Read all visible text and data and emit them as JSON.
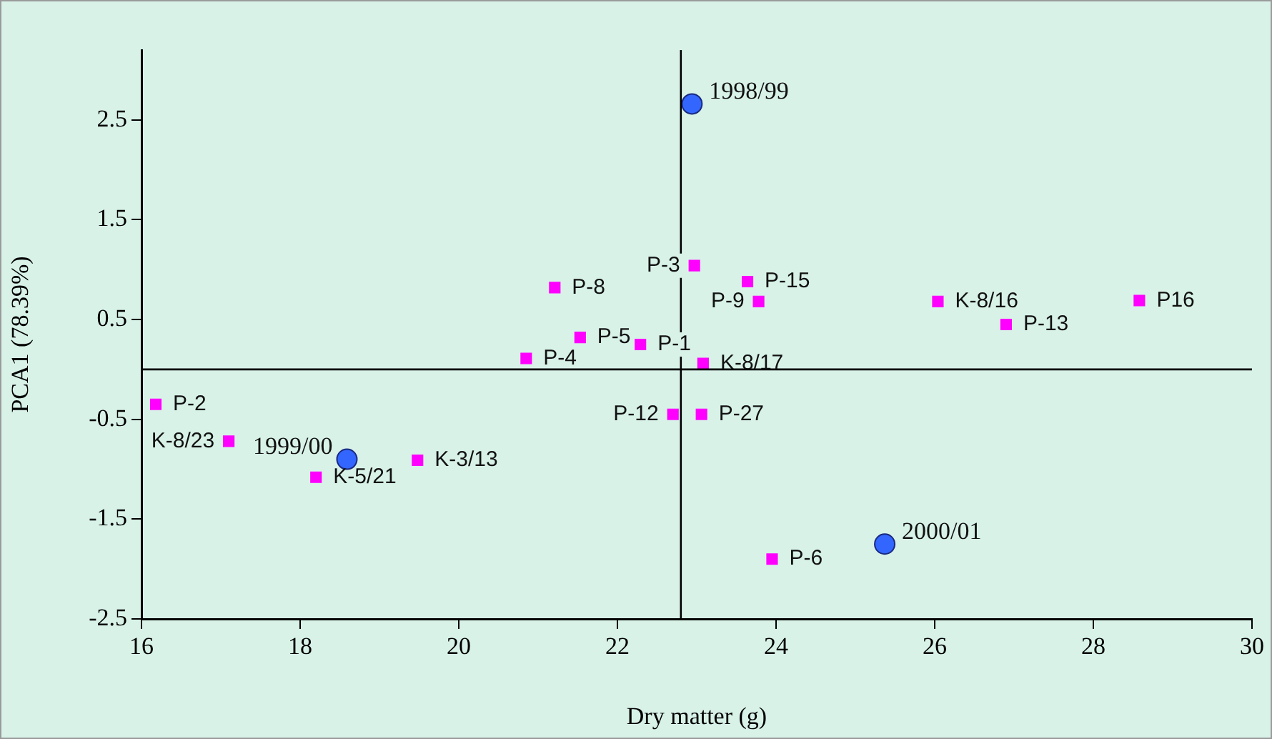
{
  "chart_data": {
    "type": "scatter",
    "xlabel": "Dry matter (g)",
    "ylabel": "PCA1 (78.39%)",
    "xlim": [
      16,
      30
    ],
    "xticks": [
      16,
      18,
      20,
      22,
      24,
      26,
      28,
      30
    ],
    "ylim": [
      -2.5,
      3.2
    ],
    "yticks": [
      -2.5,
      -1.5,
      -0.5,
      0.5,
      1.5,
      2.5
    ],
    "grid": false,
    "legend": false,
    "series": [
      {
        "color": "#3366ff",
        "marker": "circle",
        "x": [
          22.94,
          18.59,
          25.37
        ],
        "values": [
          2.66,
          -0.9,
          -1.75
        ]
      },
      {
        "color": "#ff00ff",
        "marker": "square",
        "x": [
          16.18,
          17.1,
          18.2,
          19.48,
          20.85,
          21.21,
          21.53,
          22.29,
          22.97,
          23.64,
          23.78,
          23.08,
          26.04,
          26.9,
          28.58,
          22.7,
          23.06,
          23.95
        ],
        "values": [
          -0.35,
          -0.72,
          -1.08,
          -0.91,
          0.11,
          0.82,
          0.32,
          0.25,
          1.04,
          0.88,
          0.68,
          0.06,
          0.68,
          0.45,
          0.69,
          -0.45,
          -0.45,
          -1.9
        ]
      }
    ],
    "ref_lines": [
      {
        "axis": "x",
        "value": 22.8,
        "color": "#000000"
      },
      {
        "axis": "y",
        "value": 0,
        "color": "#000000"
      }
    ],
    "annotations": [
      {
        "text": "1998/99",
        "x": 22.94,
        "y": 2.66
      },
      {
        "text": "1999/00",
        "x": 18.59,
        "y": -0.9
      },
      {
        "text": "2000/01",
        "x": 25.37,
        "y": -1.75
      },
      {
        "text": "P-2",
        "x": 16.18,
        "y": -0.35
      },
      {
        "text": "K-8/23",
        "x": 17.1,
        "y": -0.72
      },
      {
        "text": "K-5/21",
        "x": 18.2,
        "y": -1.08
      },
      {
        "text": "K-3/13",
        "x": 19.48,
        "y": -0.91
      },
      {
        "text": "P-4",
        "x": 20.85,
        "y": 0.11
      },
      {
        "text": "P-8",
        "x": 21.21,
        "y": 0.82
      },
      {
        "text": "P-5",
        "x": 21.53,
        "y": 0.32
      },
      {
        "text": "P-1",
        "x": 22.29,
        "y": 0.25
      },
      {
        "text": "P-3",
        "x": 22.97,
        "y": 1.04
      },
      {
        "text": "P-15",
        "x": 23.64,
        "y": 0.88
      },
      {
        "text": "P-9",
        "x": 23.78,
        "y": 0.68
      },
      {
        "text": "K-8/17",
        "x": 23.08,
        "y": 0.06
      },
      {
        "text": "K-8/16",
        "x": 26.04,
        "y": 0.68
      },
      {
        "text": "P-13",
        "x": 26.9,
        "y": 0.45
      },
      {
        "text": "P16",
        "x": 28.58,
        "y": 0.69
      },
      {
        "text": "P-12",
        "x": 22.7,
        "y": -0.45
      },
      {
        "text": "P-27",
        "x": 23.06,
        "y": -0.45
      },
      {
        "text": "P-6",
        "x": 23.95,
        "y": -1.9
      }
    ]
  }
}
